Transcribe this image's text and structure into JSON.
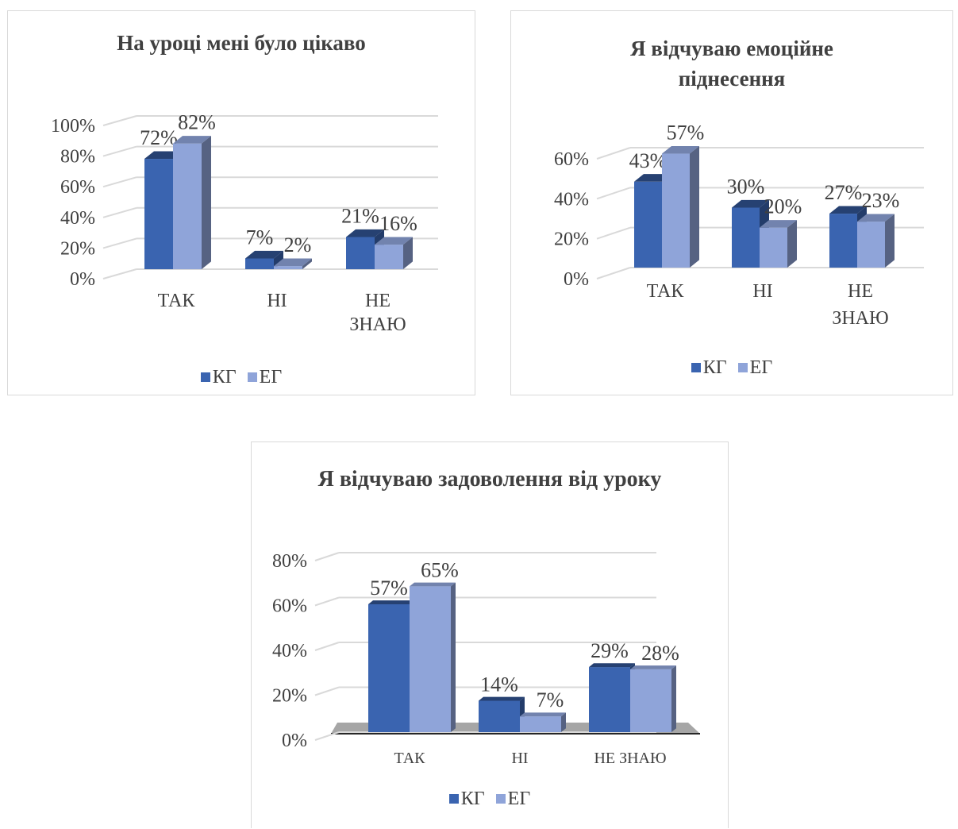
{
  "legend": {
    "kg_label": "КГ",
    "eg_label": "ЕГ"
  },
  "colors": {
    "kg": "#3a64b0",
    "eg": "#8fa4d9"
  },
  "chart_data": [
    {
      "type": "bar",
      "title": "На уроці мені було цікаво",
      "categories": [
        [
          "ТАК"
        ],
        [
          "НІ"
        ],
        [
          "НЕ",
          "ЗНАЮ"
        ]
      ],
      "series": [
        {
          "name": "КГ",
          "values": [
            72,
            7,
            21
          ],
          "labels": [
            "72%",
            "7%",
            "21%"
          ]
        },
        {
          "name": "ЕГ",
          "values": [
            82,
            2,
            16
          ],
          "labels": [
            "82%",
            "2%",
            "16%"
          ]
        }
      ],
      "yticks": [
        "0%",
        "20%",
        "40%",
        "60%",
        "80%",
        "100%"
      ],
      "ylim": [
        0,
        100
      ],
      "legend_position": "bottom",
      "grid": true
    },
    {
      "type": "bar",
      "title": "Я відчуваю емоційне піднесення",
      "categories": [
        [
          "ТАК"
        ],
        [
          "НІ"
        ],
        [
          "НЕ",
          "ЗНАЮ"
        ]
      ],
      "series": [
        {
          "name": "КГ",
          "values": [
            43,
            30,
            27
          ],
          "labels": [
            "43%",
            "30%",
            "27%"
          ]
        },
        {
          "name": "ЕГ",
          "values": [
            57,
            20,
            23
          ],
          "labels": [
            "57%",
            "20%",
            "23%"
          ]
        }
      ],
      "yticks": [
        "0%",
        "20%",
        "40%",
        "60%"
      ],
      "ylim": [
        0,
        60
      ],
      "legend_position": "bottom",
      "grid": true
    },
    {
      "type": "bar",
      "title": "Я відчуваю задоволення від уроку",
      "categories": [
        [
          "ТАК"
        ],
        [
          "НІ"
        ],
        [
          "НЕ ЗНАЮ"
        ]
      ],
      "series": [
        {
          "name": "КГ",
          "values": [
            57,
            14,
            29
          ],
          "labels": [
            "57%",
            "14%",
            "29%"
          ]
        },
        {
          "name": "ЕГ",
          "values": [
            65,
            7,
            28
          ],
          "labels": [
            "65%",
            "7%",
            "28%"
          ]
        }
      ],
      "yticks": [
        "0%",
        "20%",
        "40%",
        "60%",
        "80%"
      ],
      "ylim": [
        0,
        80
      ],
      "legend_position": "bottom",
      "grid": true
    }
  ]
}
